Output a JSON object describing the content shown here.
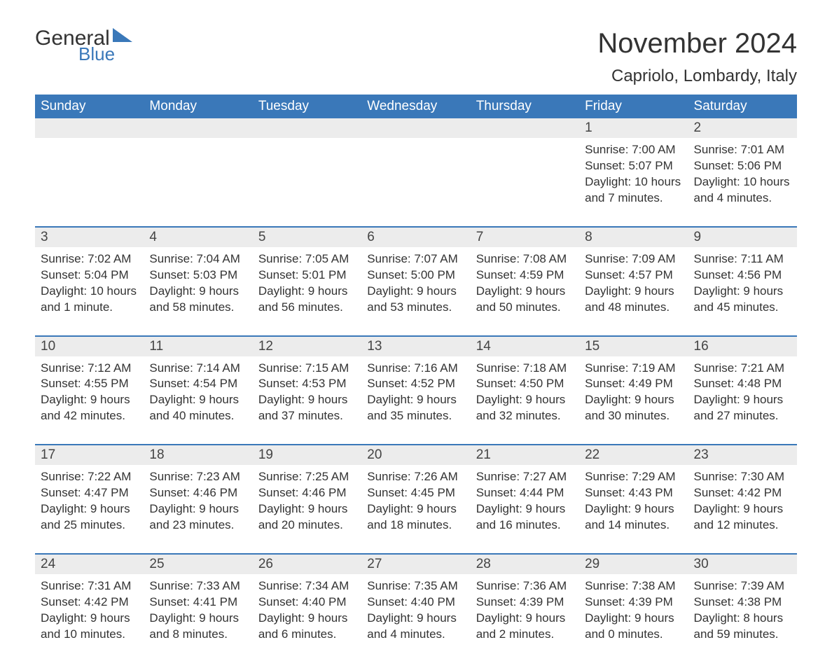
{
  "logo": {
    "text1": "General",
    "text2": "Blue",
    "brand_color": "#3a78b9"
  },
  "title": "November 2024",
  "location": "Capriolo, Lombardy, Italy",
  "colors": {
    "header_bg": "#3a78b9",
    "header_text": "#ffffff",
    "daynum_bg": "#ececec",
    "text": "#333333",
    "sep_line": "#3a78b9",
    "background": "#ffffff"
  },
  "typography": {
    "title_fontsize": 40,
    "location_fontsize": 24,
    "dow_fontsize": 19,
    "daynum_fontsize": 19,
    "detail_fontsize": 17,
    "font_family": "Arial"
  },
  "days_of_week": [
    "Sunday",
    "Monday",
    "Tuesday",
    "Wednesday",
    "Thursday",
    "Friday",
    "Saturday"
  ],
  "weeks": [
    [
      null,
      null,
      null,
      null,
      null,
      {
        "n": "1",
        "sunrise": "Sunrise: 7:00 AM",
        "sunset": "Sunset: 5:07 PM",
        "dl1": "Daylight: 10 hours",
        "dl2": "and 7 minutes."
      },
      {
        "n": "2",
        "sunrise": "Sunrise: 7:01 AM",
        "sunset": "Sunset: 5:06 PM",
        "dl1": "Daylight: 10 hours",
        "dl2": "and 4 minutes."
      }
    ],
    [
      {
        "n": "3",
        "sunrise": "Sunrise: 7:02 AM",
        "sunset": "Sunset: 5:04 PM",
        "dl1": "Daylight: 10 hours",
        "dl2": "and 1 minute."
      },
      {
        "n": "4",
        "sunrise": "Sunrise: 7:04 AM",
        "sunset": "Sunset: 5:03 PM",
        "dl1": "Daylight: 9 hours",
        "dl2": "and 58 minutes."
      },
      {
        "n": "5",
        "sunrise": "Sunrise: 7:05 AM",
        "sunset": "Sunset: 5:01 PM",
        "dl1": "Daylight: 9 hours",
        "dl2": "and 56 minutes."
      },
      {
        "n": "6",
        "sunrise": "Sunrise: 7:07 AM",
        "sunset": "Sunset: 5:00 PM",
        "dl1": "Daylight: 9 hours",
        "dl2": "and 53 minutes."
      },
      {
        "n": "7",
        "sunrise": "Sunrise: 7:08 AM",
        "sunset": "Sunset: 4:59 PM",
        "dl1": "Daylight: 9 hours",
        "dl2": "and 50 minutes."
      },
      {
        "n": "8",
        "sunrise": "Sunrise: 7:09 AM",
        "sunset": "Sunset: 4:57 PM",
        "dl1": "Daylight: 9 hours",
        "dl2": "and 48 minutes."
      },
      {
        "n": "9",
        "sunrise": "Sunrise: 7:11 AM",
        "sunset": "Sunset: 4:56 PM",
        "dl1": "Daylight: 9 hours",
        "dl2": "and 45 minutes."
      }
    ],
    [
      {
        "n": "10",
        "sunrise": "Sunrise: 7:12 AM",
        "sunset": "Sunset: 4:55 PM",
        "dl1": "Daylight: 9 hours",
        "dl2": "and 42 minutes."
      },
      {
        "n": "11",
        "sunrise": "Sunrise: 7:14 AM",
        "sunset": "Sunset: 4:54 PM",
        "dl1": "Daylight: 9 hours",
        "dl2": "and 40 minutes."
      },
      {
        "n": "12",
        "sunrise": "Sunrise: 7:15 AM",
        "sunset": "Sunset: 4:53 PM",
        "dl1": "Daylight: 9 hours",
        "dl2": "and 37 minutes."
      },
      {
        "n": "13",
        "sunrise": "Sunrise: 7:16 AM",
        "sunset": "Sunset: 4:52 PM",
        "dl1": "Daylight: 9 hours",
        "dl2": "and 35 minutes."
      },
      {
        "n": "14",
        "sunrise": "Sunrise: 7:18 AM",
        "sunset": "Sunset: 4:50 PM",
        "dl1": "Daylight: 9 hours",
        "dl2": "and 32 minutes."
      },
      {
        "n": "15",
        "sunrise": "Sunrise: 7:19 AM",
        "sunset": "Sunset: 4:49 PM",
        "dl1": "Daylight: 9 hours",
        "dl2": "and 30 minutes."
      },
      {
        "n": "16",
        "sunrise": "Sunrise: 7:21 AM",
        "sunset": "Sunset: 4:48 PM",
        "dl1": "Daylight: 9 hours",
        "dl2": "and 27 minutes."
      }
    ],
    [
      {
        "n": "17",
        "sunrise": "Sunrise: 7:22 AM",
        "sunset": "Sunset: 4:47 PM",
        "dl1": "Daylight: 9 hours",
        "dl2": "and 25 minutes."
      },
      {
        "n": "18",
        "sunrise": "Sunrise: 7:23 AM",
        "sunset": "Sunset: 4:46 PM",
        "dl1": "Daylight: 9 hours",
        "dl2": "and 23 minutes."
      },
      {
        "n": "19",
        "sunrise": "Sunrise: 7:25 AM",
        "sunset": "Sunset: 4:46 PM",
        "dl1": "Daylight: 9 hours",
        "dl2": "and 20 minutes."
      },
      {
        "n": "20",
        "sunrise": "Sunrise: 7:26 AM",
        "sunset": "Sunset: 4:45 PM",
        "dl1": "Daylight: 9 hours",
        "dl2": "and 18 minutes."
      },
      {
        "n": "21",
        "sunrise": "Sunrise: 7:27 AM",
        "sunset": "Sunset: 4:44 PM",
        "dl1": "Daylight: 9 hours",
        "dl2": "and 16 minutes."
      },
      {
        "n": "22",
        "sunrise": "Sunrise: 7:29 AM",
        "sunset": "Sunset: 4:43 PM",
        "dl1": "Daylight: 9 hours",
        "dl2": "and 14 minutes."
      },
      {
        "n": "23",
        "sunrise": "Sunrise: 7:30 AM",
        "sunset": "Sunset: 4:42 PM",
        "dl1": "Daylight: 9 hours",
        "dl2": "and 12 minutes."
      }
    ],
    [
      {
        "n": "24",
        "sunrise": "Sunrise: 7:31 AM",
        "sunset": "Sunset: 4:42 PM",
        "dl1": "Daylight: 9 hours",
        "dl2": "and 10 minutes."
      },
      {
        "n": "25",
        "sunrise": "Sunrise: 7:33 AM",
        "sunset": "Sunset: 4:41 PM",
        "dl1": "Daylight: 9 hours",
        "dl2": "and 8 minutes."
      },
      {
        "n": "26",
        "sunrise": "Sunrise: 7:34 AM",
        "sunset": "Sunset: 4:40 PM",
        "dl1": "Daylight: 9 hours",
        "dl2": "and 6 minutes."
      },
      {
        "n": "27",
        "sunrise": "Sunrise: 7:35 AM",
        "sunset": "Sunset: 4:40 PM",
        "dl1": "Daylight: 9 hours",
        "dl2": "and 4 minutes."
      },
      {
        "n": "28",
        "sunrise": "Sunrise: 7:36 AM",
        "sunset": "Sunset: 4:39 PM",
        "dl1": "Daylight: 9 hours",
        "dl2": "and 2 minutes."
      },
      {
        "n": "29",
        "sunrise": "Sunrise: 7:38 AM",
        "sunset": "Sunset: 4:39 PM",
        "dl1": "Daylight: 9 hours",
        "dl2": "and 0 minutes."
      },
      {
        "n": "30",
        "sunrise": "Sunrise: 7:39 AM",
        "sunset": "Sunset: 4:38 PM",
        "dl1": "Daylight: 8 hours",
        "dl2": "and 59 minutes."
      }
    ]
  ]
}
